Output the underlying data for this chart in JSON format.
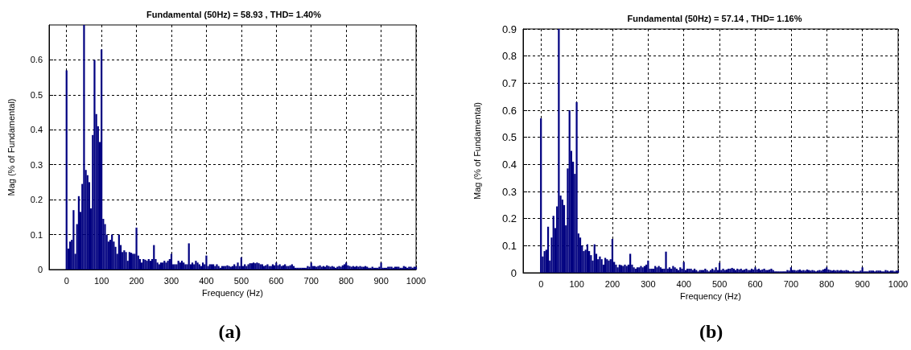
{
  "chart_data": [
    {
      "type": "bar",
      "title": "Fundamental (50Hz) = 58.93 , THD= 1.40%",
      "xlabel": "Frequency (Hz)",
      "ylabel": "Mag (% of Fundamental)",
      "annotations": [
        "(a)"
      ],
      "x": [
        0,
        5,
        10,
        15,
        20,
        25,
        30,
        35,
        40,
        45,
        50,
        55,
        60,
        65,
        70,
        75,
        80,
        85,
        90,
        95,
        100,
        105,
        110,
        115,
        120,
        125,
        130,
        135,
        140,
        145,
        150,
        155,
        160,
        165,
        170,
        175,
        180,
        185,
        190,
        195,
        200,
        205,
        210,
        215,
        220,
        225,
        230,
        235,
        240,
        245,
        250,
        255,
        260,
        265,
        270,
        275,
        280,
        285,
        290,
        295,
        300,
        305,
        310,
        315,
        320,
        325,
        330,
        335,
        340,
        345,
        350,
        355,
        360,
        365,
        370,
        375,
        380,
        385,
        390,
        395,
        400,
        405,
        410,
        415,
        420,
        425,
        430,
        435,
        440,
        445,
        450,
        455,
        460,
        465,
        470,
        475,
        480,
        485,
        490,
        495,
        500,
        505,
        510,
        515,
        520,
        525,
        530,
        535,
        540,
        545,
        550,
        555,
        560,
        565,
        570,
        575,
        580,
        585,
        590,
        595,
        600,
        605,
        610,
        615,
        620,
        625,
        630,
        635,
        640,
        645,
        650,
        655,
        660,
        665,
        670,
        675,
        680,
        685,
        690,
        695,
        700,
        705,
        710,
        715,
        720,
        725,
        730,
        735,
        740,
        745,
        750,
        755,
        760,
        765,
        770,
        775,
        780,
        785,
        790,
        795,
        800,
        805,
        810,
        815,
        820,
        825,
        830,
        835,
        840,
        845,
        850,
        855,
        860,
        865,
        870,
        875,
        880,
        885,
        890,
        895,
        900,
        905,
        910,
        915,
        920,
        925,
        930,
        935,
        940,
        945,
        950,
        955,
        960,
        965,
        970,
        975,
        980,
        985,
        990,
        995,
        1000
      ],
      "series": [
        {
          "color": "#000080",
          "values": [
            0.57,
            0.06,
            0.08,
            0.085,
            0.17,
            0.045,
            0.13,
            0.21,
            0.165,
            0.245,
            0.7,
            0.285,
            0.27,
            0.25,
            0.175,
            0.385,
            0.6,
            0.445,
            0.41,
            0.365,
            0.63,
            0.145,
            0.13,
            0.1,
            0.08,
            0.085,
            0.1,
            0.08,
            0.065,
            0.045,
            0.1,
            0.07,
            0.05,
            0.055,
            0.05,
            0.025,
            0.05,
            0.048,
            0.045,
            0.045,
            0.12,
            0.04,
            0.03,
            0.02,
            0.03,
            0.028,
            0.025,
            0.03,
            0.025,
            0.03,
            0.07,
            0.03,
            0.02,
            0.015,
            0.02,
            0.02,
            0.025,
            0.02,
            0.025,
            0.03,
            0.045,
            0.015,
            0.015,
            0.015,
            0.025,
            0.02,
            0.025,
            0.02,
            0.015,
            0.015,
            0.075,
            0.015,
            0.02,
            0.015,
            0.025,
            0.02,
            0.015,
            0.01,
            0.02,
            0.015,
            0.04,
            0.01,
            0.015,
            0.015,
            0.015,
            0.01,
            0.015,
            0.01,
            0.005,
            0.01,
            0.01,
            0.01,
            0.012,
            0.01,
            0.008,
            0.01,
            0.015,
            0.01,
            0.02,
            0.01,
            0.035,
            0.01,
            0.015,
            0.01,
            0.015,
            0.018,
            0.018,
            0.02,
            0.018,
            0.02,
            0.018,
            0.015,
            0.015,
            0.01,
            0.012,
            0.015,
            0.01,
            0.01,
            0.015,
            0.012,
            0.02,
            0.012,
            0.015,
            0.01,
            0.012,
            0.015,
            0.01,
            0.01,
            0.012,
            0.015,
            0.01,
            0.005,
            0.005,
            0.005,
            0.005,
            0.005,
            0.005,
            0.005,
            0.01,
            0.008,
            0.02,
            0.01,
            0.01,
            0.008,
            0.01,
            0.012,
            0.008,
            0.01,
            0.008,
            0.012,
            0.01,
            0.008,
            0.01,
            0.008,
            0.005,
            0.008,
            0.01,
            0.008,
            0.012,
            0.015,
            0.02,
            0.012,
            0.01,
            0.008,
            0.01,
            0.008,
            0.01,
            0.008,
            0.01,
            0.008,
            0.008,
            0.01,
            0.008,
            0.005,
            0.005,
            0.008,
            0.005,
            0.005,
            0.005,
            0.008,
            0.02,
            0.005,
            0.005,
            0.005,
            0.008,
            0.008,
            0.008,
            0.005,
            0.008,
            0.008,
            0.008,
            0.005,
            0.005,
            0.01,
            0.008,
            0.005,
            0.008,
            0.008,
            0.005,
            0.008,
            0.008
          ]
        }
      ],
      "xlim": [
        -50,
        1000
      ],
      "xticks": [
        0,
        100,
        200,
        300,
        400,
        500,
        600,
        700,
        800,
        900,
        1000
      ],
      "ylim": [
        0,
        0.7
      ],
      "yticks": [
        0,
        0.1,
        0.2,
        0.3,
        0.4,
        0.5,
        0.6
      ],
      "grid": true
    },
    {
      "type": "bar",
      "title": "Fundamental (50Hz) = 57.14 , THD= 1.16%",
      "xlabel": "Frequency (Hz)",
      "ylabel": "Mag (% of Fundamental)",
      "annotations": [
        "(b)"
      ],
      "x": [
        0,
        5,
        10,
        15,
        20,
        25,
        30,
        35,
        40,
        45,
        50,
        55,
        60,
        65,
        70,
        75,
        80,
        85,
        90,
        95,
        100,
        105,
        110,
        115,
        120,
        125,
        130,
        135,
        140,
        145,
        150,
        155,
        160,
        165,
        170,
        175,
        180,
        185,
        190,
        195,
        200,
        205,
        210,
        215,
        220,
        225,
        230,
        235,
        240,
        245,
        250,
        255,
        260,
        265,
        270,
        275,
        280,
        285,
        290,
        295,
        300,
        305,
        310,
        315,
        320,
        325,
        330,
        335,
        340,
        345,
        350,
        355,
        360,
        365,
        370,
        375,
        380,
        385,
        390,
        395,
        400,
        405,
        410,
        415,
        420,
        425,
        430,
        435,
        440,
        445,
        450,
        455,
        460,
        465,
        470,
        475,
        480,
        485,
        490,
        495,
        500,
        505,
        510,
        515,
        520,
        525,
        530,
        535,
        540,
        545,
        550,
        555,
        560,
        565,
        570,
        575,
        580,
        585,
        590,
        595,
        600,
        605,
        610,
        615,
        620,
        625,
        630,
        635,
        640,
        645,
        650,
        655,
        660,
        665,
        670,
        675,
        680,
        685,
        690,
        695,
        700,
        705,
        710,
        715,
        720,
        725,
        730,
        735,
        740,
        745,
        750,
        755,
        760,
        765,
        770,
        775,
        780,
        785,
        790,
        795,
        800,
        805,
        810,
        815,
        820,
        825,
        830,
        835,
        840,
        845,
        850,
        855,
        860,
        865,
        870,
        875,
        880,
        885,
        890,
        895,
        900,
        905,
        910,
        915,
        920,
        925,
        930,
        935,
        940,
        945,
        950,
        955,
        960,
        965,
        970,
        975,
        980,
        985,
        990,
        995,
        1000
      ],
      "series": [
        {
          "color": "#000080",
          "values": [
            0.57,
            0.06,
            0.08,
            0.085,
            0.17,
            0.045,
            0.13,
            0.21,
            0.165,
            0.245,
            0.9,
            0.285,
            0.27,
            0.25,
            0.175,
            0.385,
            0.6,
            0.45,
            0.41,
            0.365,
            0.63,
            0.145,
            0.13,
            0.1,
            0.08,
            0.085,
            0.105,
            0.08,
            0.065,
            0.045,
            0.105,
            0.07,
            0.05,
            0.06,
            0.05,
            0.03,
            0.055,
            0.05,
            0.045,
            0.05,
            0.125,
            0.04,
            0.03,
            0.02,
            0.03,
            0.028,
            0.025,
            0.03,
            0.025,
            0.03,
            0.07,
            0.03,
            0.02,
            0.015,
            0.02,
            0.02,
            0.025,
            0.02,
            0.025,
            0.03,
            0.045,
            0.015,
            0.015,
            0.015,
            0.025,
            0.02,
            0.025,
            0.02,
            0.015,
            0.015,
            0.078,
            0.015,
            0.02,
            0.015,
            0.025,
            0.02,
            0.015,
            0.01,
            0.02,
            0.015,
            0.04,
            0.01,
            0.015,
            0.015,
            0.015,
            0.01,
            0.015,
            0.01,
            0.005,
            0.01,
            0.01,
            0.01,
            0.015,
            0.01,
            0.005,
            0.01,
            0.015,
            0.01,
            0.02,
            0.01,
            0.037,
            0.01,
            0.015,
            0.01,
            0.012,
            0.015,
            0.015,
            0.018,
            0.015,
            0.01,
            0.015,
            0.012,
            0.015,
            0.01,
            0.012,
            0.015,
            0.01,
            0.01,
            0.015,
            0.012,
            0.02,
            0.012,
            0.015,
            0.01,
            0.012,
            0.015,
            0.01,
            0.01,
            0.012,
            0.015,
            0.01,
            0.005,
            0.005,
            0.005,
            0.005,
            0.005,
            0.005,
            0.005,
            0.01,
            0.008,
            0.02,
            0.01,
            0.01,
            0.008,
            0.01,
            0.012,
            0.008,
            0.01,
            0.008,
            0.012,
            0.01,
            0.008,
            0.01,
            0.008,
            0.005,
            0.008,
            0.01,
            0.008,
            0.012,
            0.015,
            0.02,
            0.012,
            0.01,
            0.008,
            0.01,
            0.008,
            0.01,
            0.008,
            0.01,
            0.008,
            0.008,
            0.01,
            0.008,
            0.005,
            0.005,
            0.008,
            0.005,
            0.005,
            0.005,
            0.008,
            0.02,
            0.005,
            0.005,
            0.005,
            0.008,
            0.008,
            0.008,
            0.005,
            0.008,
            0.008,
            0.008,
            0.005,
            0.005,
            0.01,
            0.008,
            0.005,
            0.008,
            0.008,
            0.005,
            0.008,
            0.008
          ]
        }
      ],
      "xlim": [
        -50,
        1000
      ],
      "xticks": [
        0,
        100,
        200,
        300,
        400,
        500,
        600,
        700,
        800,
        900,
        1000
      ],
      "ylim": [
        0,
        0.9
      ],
      "yticks": [
        0,
        0.1,
        0.2,
        0.3,
        0.4,
        0.5,
        0.6,
        0.7,
        0.8,
        0.9
      ],
      "grid": true
    }
  ]
}
